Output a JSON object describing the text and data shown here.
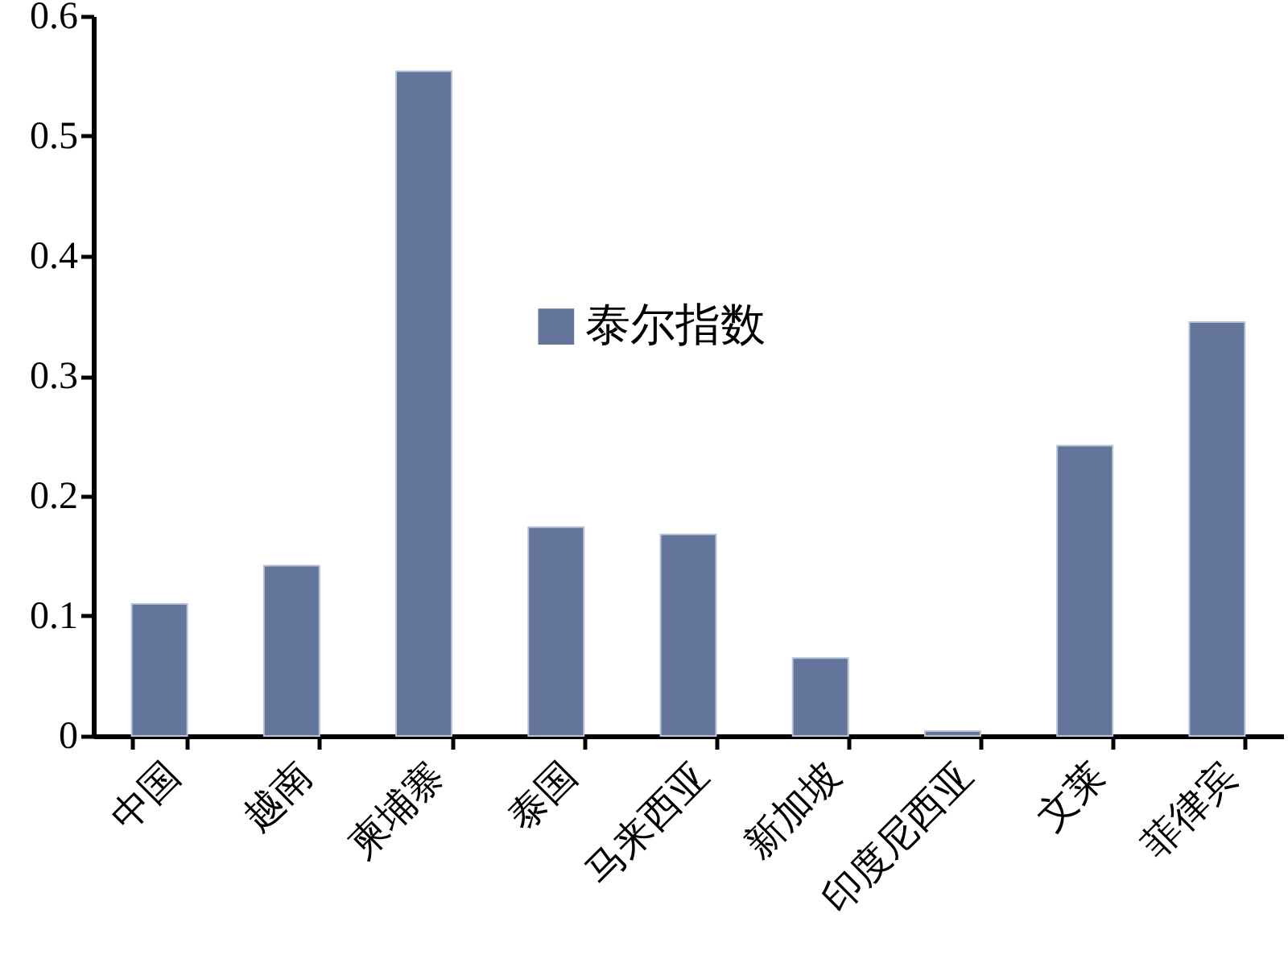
{
  "chart_data": {
    "type": "bar",
    "categories": [
      "中国",
      "越南",
      "柬埔寨",
      "泰国",
      "马来西亚",
      "新加坡",
      "印度尼西亚",
      "文莱",
      "菲律宾"
    ],
    "series": [
      {
        "name": "泰尔指数",
        "color": "#64759c",
        "values": [
          0.11,
          0.142,
          0.554,
          0.174,
          0.168,
          0.065,
          0.004,
          0.242,
          0.345
        ]
      }
    ],
    "ylim": [
      0,
      0.6
    ],
    "yticks": [
      0,
      0.1,
      0.2,
      0.3,
      0.4,
      0.5,
      0.6
    ],
    "grid": false,
    "legend": "top"
  }
}
